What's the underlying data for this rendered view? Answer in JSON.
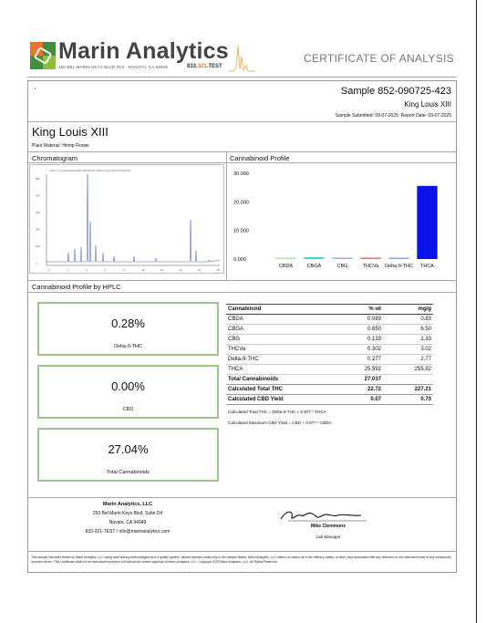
{
  "header": {
    "brand": "Marin Analytics",
    "address": "250 BEL MARIN KEYS BLVD #D4 · NOVATO, CA 94949",
    "phone_prefix": "833.",
    "phone_highlight": "321",
    "phone_suffix": ".TEST",
    "document_title": "CERTIFICATE OF ANALYSIS"
  },
  "sample": {
    "mark": "'",
    "number": "Sample 852-090725-423",
    "name": "King Louis XIII",
    "dates": "Sample Submitted: 09-07-2025; Report Date: 09-07-2025"
  },
  "product": {
    "name": "King Louis XIII",
    "plant_material": "Plant Material: Hemp Flower"
  },
  "panels": {
    "chromatogram_label": "Chromatogram",
    "profile_label": "Cannabinoid Profile",
    "hplc_label": "Cannabinoid Profile by HPLC"
  },
  "chromatogram": {
    "header_text": "PDA-1 C:\\Users\\Lab\\Data\\852-090725-423_DAD1-A  Sig=230,4 Ref=360,100",
    "y_ticks": [
      "500",
      "400",
      "300",
      "200",
      "100",
      "0"
    ],
    "x_ticks": [
      "0",
      "2",
      "4",
      "6",
      "8",
      "10",
      "12",
      "14",
      "16",
      "18"
    ]
  },
  "chart_data": {
    "type": "bar",
    "title": "",
    "categories": [
      "CBDA",
      "CBGA",
      "CBG",
      "THCVa",
      "Delta-9-THC",
      "THCA"
    ],
    "values": [
      0.083,
      0.65,
      0.133,
      0.302,
      0.277,
      25.592
    ],
    "y_ticks": [
      "30.000",
      "20.000",
      "10.000",
      "0.000"
    ],
    "ylim": [
      0,
      30
    ],
    "colors": [
      "#b7e3a4",
      "#3cd3e0",
      "#b6a8e0",
      "#ff6b6b",
      "#8fa8ff",
      "#0a14e6"
    ],
    "xlabel": "",
    "ylabel": "",
    "grid": false
  },
  "stats": [
    {
      "value": "0.28%",
      "label": "Delta-9-THC"
    },
    {
      "value": "0.00%",
      "label": "CBD"
    },
    {
      "value": "27.04%",
      "label": "Total Cannabinoids"
    }
  ],
  "table": {
    "headers": [
      "Cannabinoid",
      "% wt",
      "mg/g"
    ],
    "rows": [
      [
        "CBDA",
        "0.083",
        "0.83"
      ],
      [
        "CBGA",
        "0.650",
        "6.50"
      ],
      [
        "CBG",
        "0.133",
        "1.33"
      ],
      [
        "THCVa",
        "0.302",
        "3.02"
      ],
      [
        "Delta-9-THC",
        "0.277",
        "2.77"
      ],
      [
        "THCA",
        "25.592",
        "255.92"
      ]
    ],
    "total_row": [
      "Total Cannabinoids",
      "27.037",
      ""
    ],
    "calc_rows": [
      [
        "Calculated Total THC",
        "22.72",
        "227.21"
      ],
      [
        "Calculated CBD Yield",
        "0.07",
        "0.73"
      ]
    ],
    "formula_thc": "Calculated Total THC = Delta-9-THC + 0.877 * THCA",
    "formula_cbd": "Calculated Maximum CBD Yield = CBD + 0.877 * CBDA"
  },
  "footer": {
    "lab_name": "Marin Analytics, LLC",
    "lab_address1": "250 Bel Marin Keys Blvd, Suite D4",
    "lab_address2": "Novato, CA 94949",
    "lab_contact": "833-321-TEST / info@marinanalytics.com",
    "signer_name": "Mike Clemmons",
    "signer_title": "Lab Manager",
    "disclaimer": "This sample has been tested by Marin Analytics, LLC using valid testing methodologies and a quality system. Values reported relate only to the sample tested. Marin Analytics, LLC makes no claims as to the efficacy, safety, or other risks associated with any detected or non-detected levels of any compounds reported herein. This Certificate shall not be reproduced except in full without the written approval of Marin Analytics, LLC. Copyright 2023 Marin Analytics, LLC. All Rights Reserved."
  }
}
